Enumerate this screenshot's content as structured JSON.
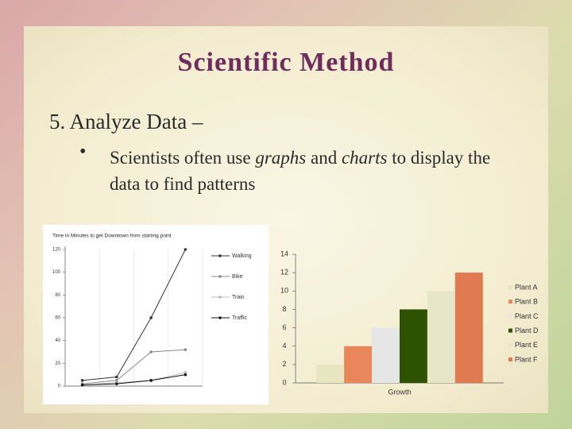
{
  "title": "Scientific Method",
  "heading": "5.   Analyze Data –",
  "bullet": {
    "parts": [
      "Scientists often use ",
      "graphs",
      " and ",
      "charts",
      " to display the data to find patterns"
    ]
  },
  "chart_data": [
    {
      "type": "line",
      "title": "Time in Minutes to get Downtown from starting point",
      "categories": [
        null,
        null,
        null,
        null
      ],
      "ylim": [
        0,
        120
      ],
      "yticks": [
        0,
        20,
        40,
        60,
        80,
        100,
        120
      ],
      "series": [
        {
          "name": "Walking",
          "color": "#333333",
          "values": [
            5,
            8,
            60,
            120
          ]
        },
        {
          "name": "Bike",
          "color": "#888888",
          "values": [
            2,
            5,
            30,
            32
          ]
        },
        {
          "name": "Train",
          "color": "#bbbbbb",
          "values": [
            1,
            3,
            5,
            12
          ]
        },
        {
          "name": "Traffic",
          "color": "#111111",
          "values": [
            1,
            2,
            5,
            10
          ]
        }
      ]
    },
    {
      "type": "bar",
      "categories": [
        "Growth"
      ],
      "ylim": [
        0,
        14
      ],
      "yticks": [
        0,
        2,
        4,
        6,
        8,
        10,
        12,
        14
      ],
      "series": [
        {
          "name": "Plant A",
          "color": "#e9e5c1",
          "values": [
            2
          ]
        },
        {
          "name": "Plant B",
          "color": "#e8875a",
          "values": [
            4
          ]
        },
        {
          "name": "Plant C",
          "color": "#e6e6e6",
          "values": [
            6
          ]
        },
        {
          "name": "Plant D",
          "color": "#2d5200",
          "values": [
            8
          ]
        },
        {
          "name": "Plant E",
          "color": "#e8e6c8",
          "values": [
            10
          ]
        },
        {
          "name": "Plant F",
          "color": "#e07a50",
          "values": [
            12
          ]
        }
      ]
    }
  ]
}
